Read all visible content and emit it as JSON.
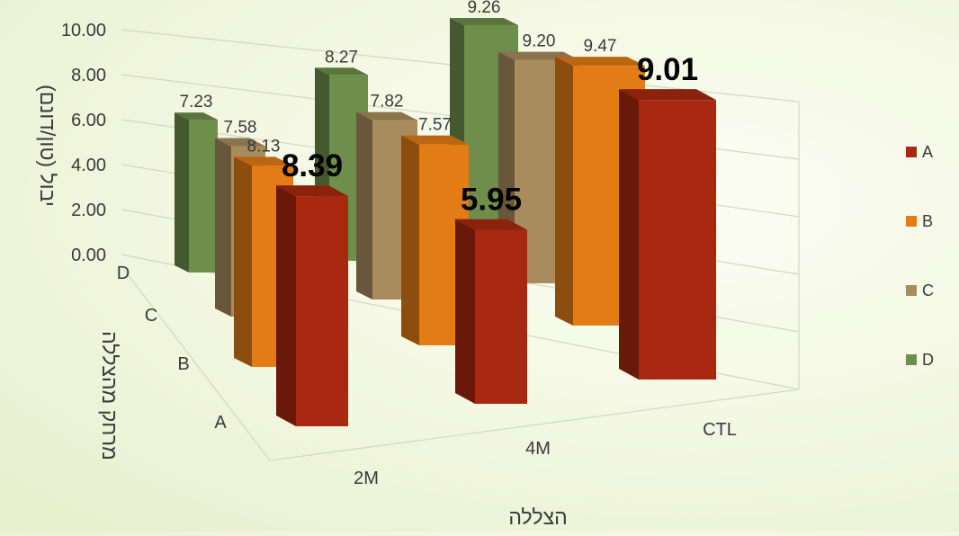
{
  "chart_data": {
    "type": "bar",
    "subtype": "3d-column",
    "categories": [
      "2M",
      "4M",
      "CTL"
    ],
    "depth_categories": [
      "D",
      "C",
      "B",
      "A"
    ],
    "series": [
      {
        "name": "A",
        "values": [
          8.39,
          5.95,
          9.01
        ],
        "color": "#a8290f"
      },
      {
        "name": "B",
        "values": [
          8.13,
          7.57,
          9.47
        ],
        "color": "#e47c16"
      },
      {
        "name": "C",
        "values": [
          7.58,
          7.82,
          9.2
        ],
        "color": "#a88c5e"
      },
      {
        "name": "D",
        "values": [
          7.23,
          8.27,
          9.26
        ],
        "color": "#6e8f4b"
      }
    ],
    "data_labels": {
      "A": [
        "8.39",
        "5.95",
        "9.01"
      ],
      "B": [
        "8.13",
        "7.57",
        "9.47"
      ],
      "C": [
        "7.58",
        "7.82",
        "9.20"
      ],
      "D": [
        "7.23",
        "8.27",
        "9.26"
      ]
    },
    "highlighted_series": "A",
    "xlabel": "הצללה",
    "ylabel": "יבול (טון/דונם)",
    "zlabel": "מרחק מהצללה",
    "yticks": [
      "0.00",
      "2.00",
      "4.00",
      "6.00",
      "8.00",
      "10.00"
    ],
    "ylim": [
      0,
      10
    ],
    "legend": {
      "position": "right",
      "entries": [
        "A",
        "B",
        "C",
        "D"
      ]
    },
    "grid": true
  }
}
